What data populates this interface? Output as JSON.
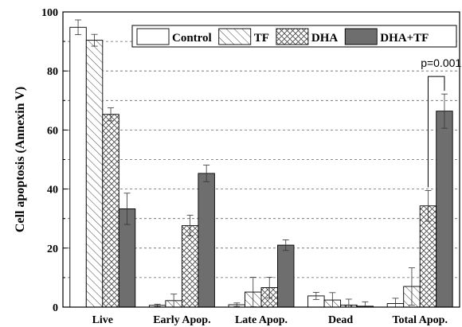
{
  "chart_data": {
    "type": "bar",
    "title": "",
    "xlabel": "",
    "ylabel": "Cell apoptosis (Annexin V)",
    "ylim": [
      0,
      100
    ],
    "yticks": [
      0,
      20,
      40,
      60,
      80,
      100
    ],
    "y_grid": "dashed",
    "legend_position": "top-right",
    "categories": [
      "Live",
      "Early Apop.",
      "Late Apop.",
      "Dead",
      "Total Apop."
    ],
    "series": [
      {
        "name": "Control",
        "fill": "white",
        "color": "#ffffff",
        "values": [
          94.8,
          0.6,
          0.8,
          3.8,
          1.2
        ],
        "errors": [
          2.5,
          0.4,
          0.6,
          1.2,
          1.8
        ]
      },
      {
        "name": "TF",
        "fill": "diagonal-hatch",
        "color": "#ffffff",
        "values": [
          90.4,
          2.2,
          5.1,
          2.4,
          7.0
        ],
        "errors": [
          2.0,
          2.2,
          5.0,
          2.5,
          6.3
        ]
      },
      {
        "name": "DHA",
        "fill": "cross-hatch",
        "color": "#ffffff",
        "values": [
          65.3,
          27.6,
          6.6,
          0.7,
          34.3
        ],
        "errors": [
          2.2,
          3.5,
          3.5,
          2.0,
          5.2
        ]
      },
      {
        "name": "DHA+TF",
        "fill": "solid",
        "color": "#6e6e6e",
        "values": [
          33.3,
          45.3,
          21.0,
          0.3,
          66.4
        ],
        "errors": [
          5.3,
          2.8,
          1.8,
          1.5,
          5.8
        ]
      }
    ],
    "annotations": [
      {
        "text": "p=0.001",
        "between": [
          "DHA",
          "DHA+TF"
        ],
        "category": "Total Apop."
      }
    ]
  }
}
